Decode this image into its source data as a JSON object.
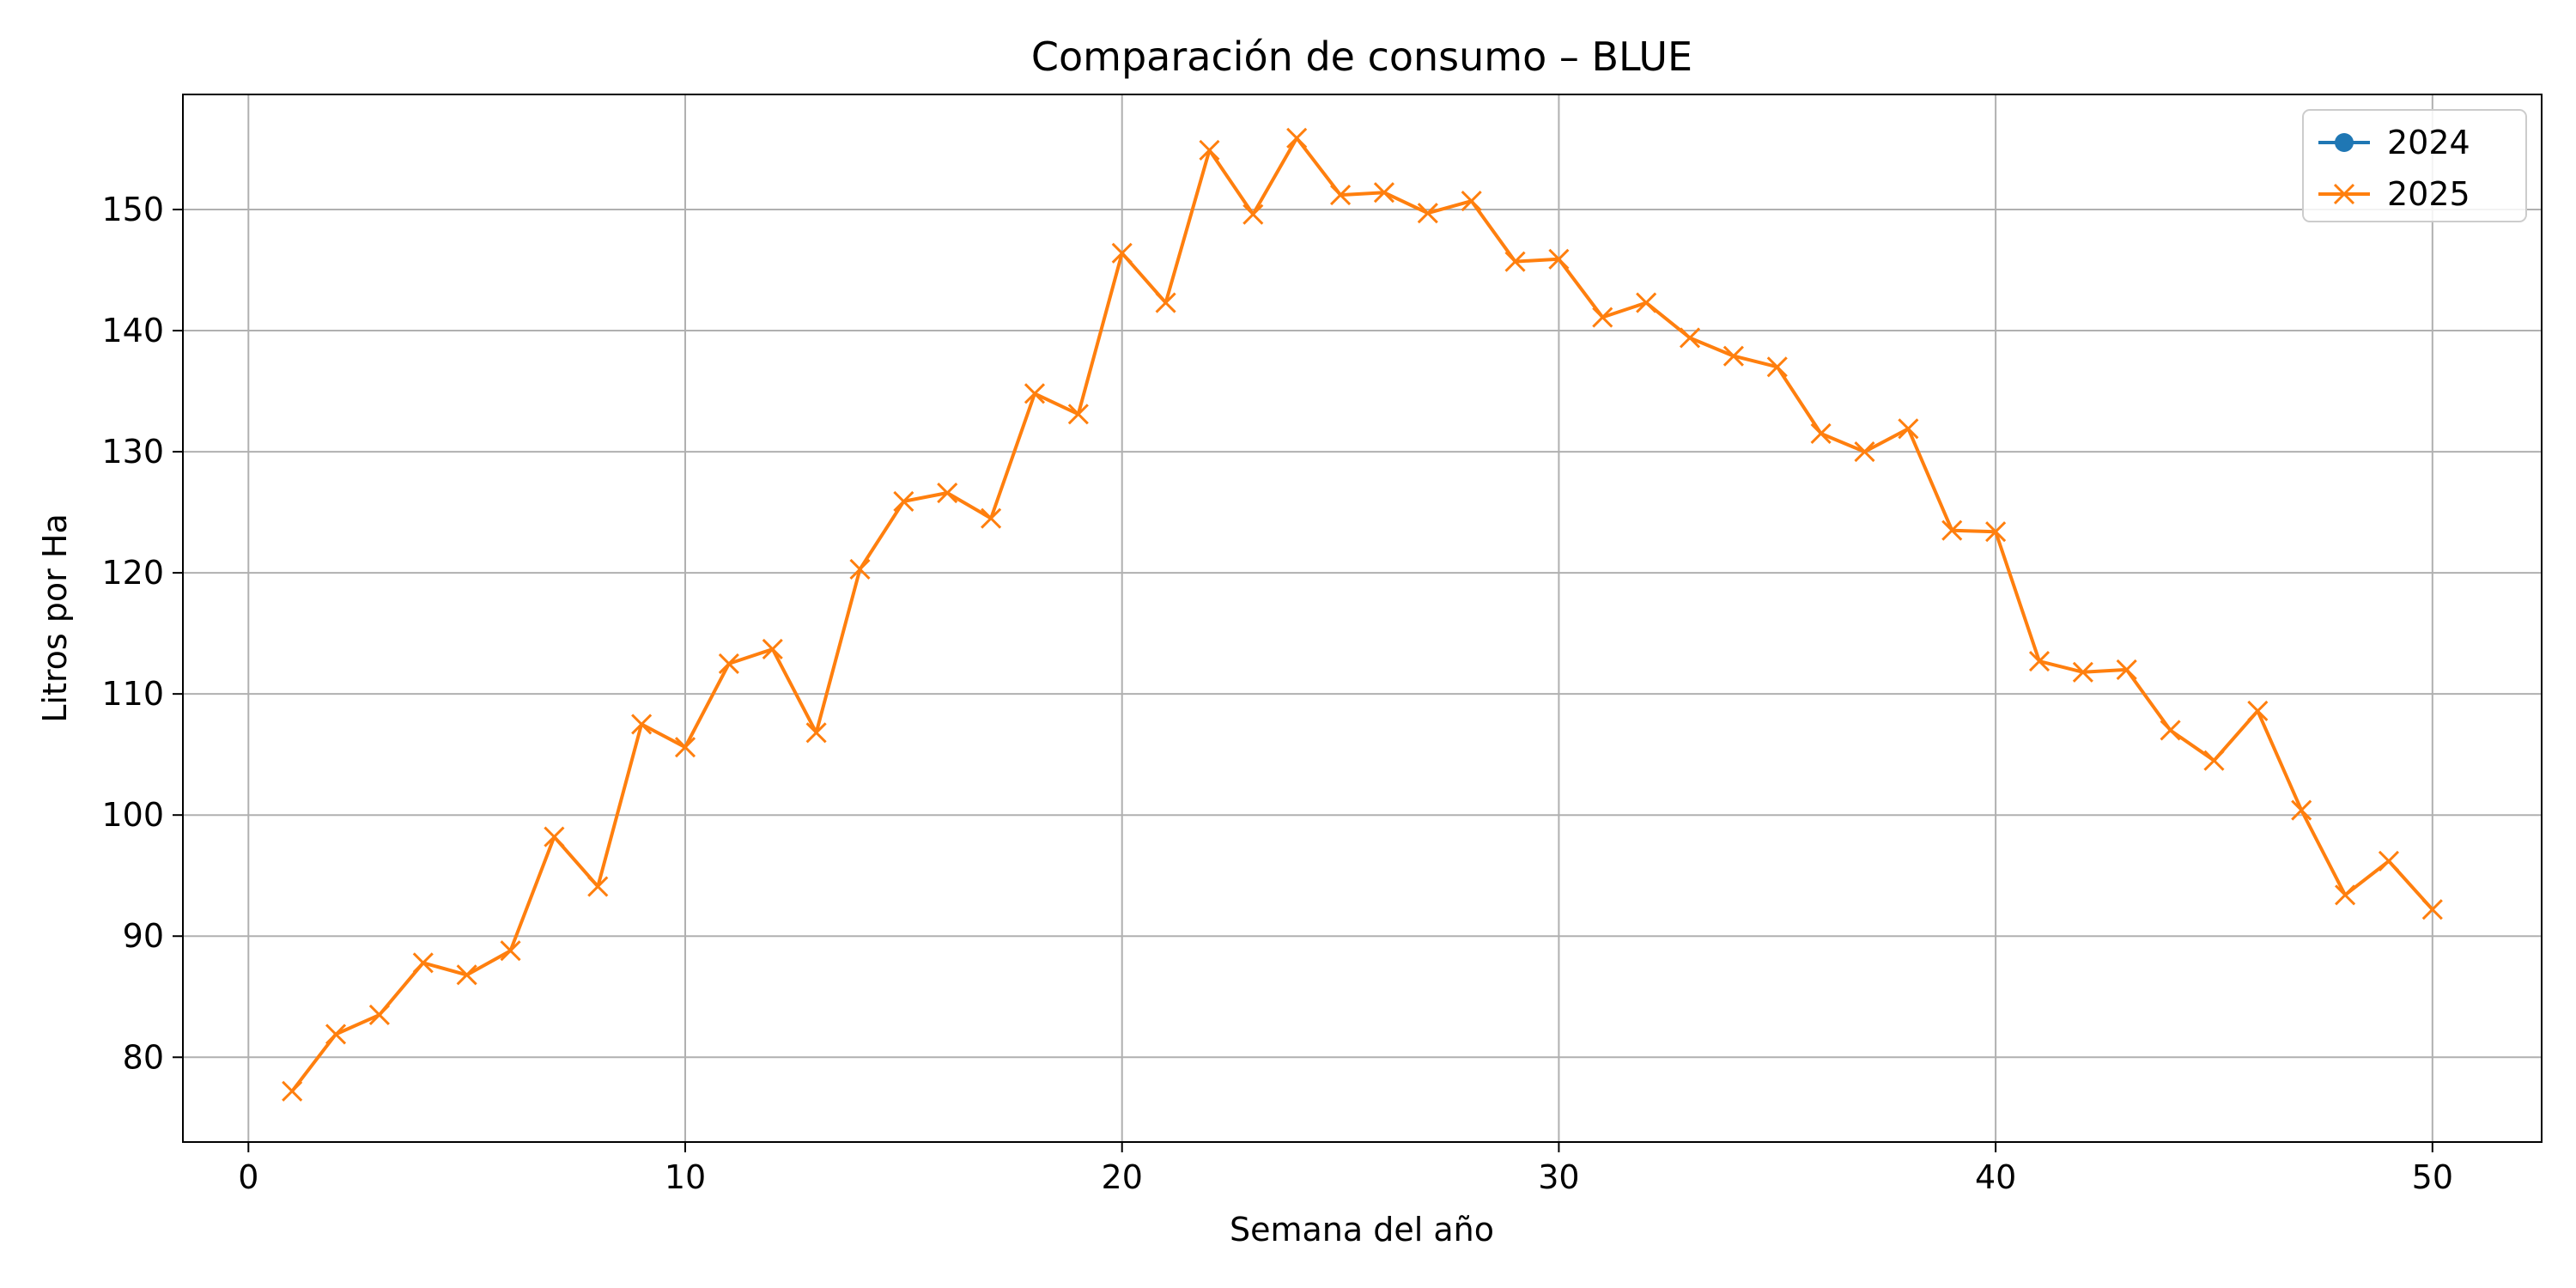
{
  "chart_data": {
    "type": "line",
    "title": "Comparación de consumo – BLUE",
    "xlabel": "Semana del año",
    "ylabel": "Litros por Ha",
    "xlim": [
      -1.5,
      52.5
    ],
    "ylim": [
      73,
      159.5
    ],
    "x_ticks": [
      0,
      10,
      20,
      30,
      40,
      50
    ],
    "y_ticks": [
      80,
      90,
      100,
      110,
      120,
      130,
      140,
      150
    ],
    "grid": true,
    "legend_position": "top-right",
    "series": [
      {
        "name": "2024",
        "color": "#1f77b4",
        "marker": "circle",
        "x": [],
        "values": []
      },
      {
        "name": "2025",
        "color": "#ff7f0e",
        "marker": "x",
        "x": [
          1,
          2,
          3,
          4,
          5,
          6,
          7,
          8,
          9,
          10,
          11,
          12,
          13,
          14,
          15,
          16,
          17,
          18,
          19,
          20,
          21,
          22,
          23,
          24,
          25,
          26,
          27,
          28,
          29,
          30,
          31,
          32,
          33,
          34,
          35,
          36,
          37,
          38,
          39,
          40,
          41,
          42,
          43,
          44,
          45,
          46,
          47,
          48,
          49,
          50
        ],
        "values": [
          77.2,
          81.9,
          83.5,
          87.8,
          86.8,
          88.8,
          98.2,
          94.1,
          107.5,
          105.6,
          112.5,
          113.7,
          106.8,
          120.3,
          125.9,
          126.6,
          124.5,
          134.8,
          133.1,
          146.4,
          142.3,
          154.9,
          149.6,
          155.9,
          151.2,
          151.4,
          149.7,
          150.7,
          145.7,
          145.9,
          141.1,
          142.3,
          139.4,
          137.9,
          137.0,
          131.5,
          130.0,
          131.9,
          123.5,
          123.4,
          112.7,
          111.8,
          112.0,
          107.0,
          104.5,
          108.6,
          100.4,
          93.4,
          96.2,
          92.2
        ]
      }
    ]
  }
}
